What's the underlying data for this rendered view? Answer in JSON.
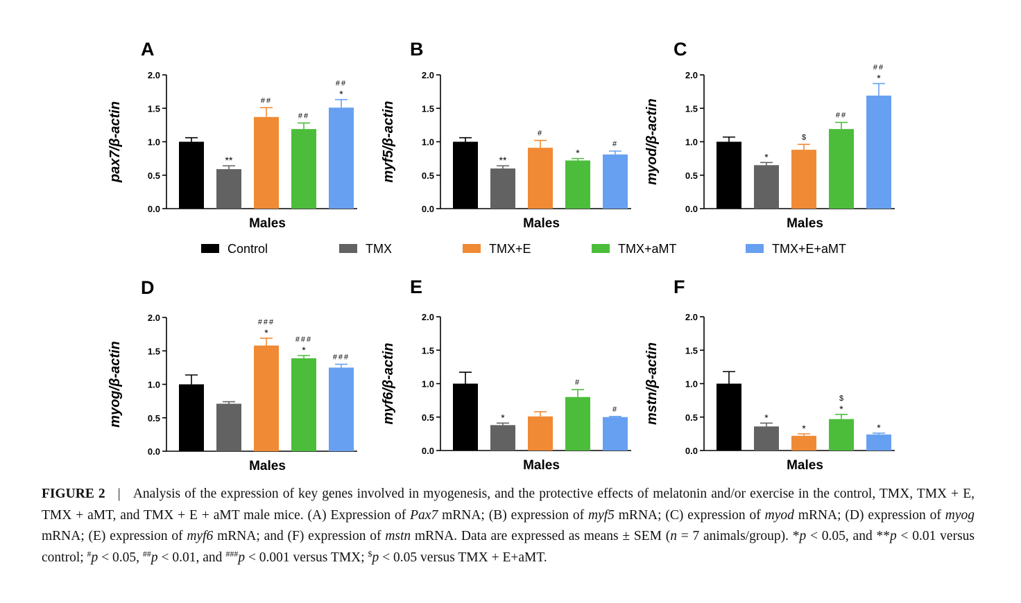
{
  "chart_data": [
    {
      "panel": "A",
      "type": "bar",
      "ylabel": "pax7/β-actin",
      "ylabel_gene": "pax7",
      "ylabel_ref": "β-actin",
      "xlabel": "Males",
      "ylim": [
        0,
        2
      ],
      "yticks": [
        "0.0",
        "0.5",
        "1.0",
        "1.5",
        "2.0"
      ],
      "categories": [
        "Control",
        "TMX",
        "TMX+E",
        "TMX+aMT",
        "TMX+E+aMT"
      ],
      "values": [
        1.0,
        0.59,
        1.37,
        1.19,
        1.51
      ],
      "errors": [
        0.06,
        0.05,
        0.14,
        0.09,
        0.12
      ],
      "annotations": [
        [],
        [
          "**"
        ],
        [
          "##"
        ],
        [
          "##"
        ],
        [
          "##",
          "*"
        ]
      ]
    },
    {
      "panel": "B",
      "type": "bar",
      "ylabel": "myf5/β-actin",
      "ylabel_gene": "myf5",
      "ylabel_ref": "β-actin",
      "xlabel": "Males",
      "ylim": [
        0,
        2
      ],
      "yticks": [
        "0.0",
        "0.5",
        "1.0",
        "1.5",
        "2.0"
      ],
      "categories": [
        "Control",
        "TMX",
        "TMX+E",
        "TMX+aMT",
        "TMX+E+aMT"
      ],
      "values": [
        1.0,
        0.6,
        0.91,
        0.72,
        0.81
      ],
      "errors": [
        0.06,
        0.04,
        0.11,
        0.03,
        0.05
      ],
      "annotations": [
        [],
        [
          "**"
        ],
        [
          "#"
        ],
        [
          "*"
        ],
        [
          "#"
        ]
      ]
    },
    {
      "panel": "C",
      "type": "bar",
      "ylabel": "myod/β-actin",
      "ylabel_gene": "myod",
      "ylabel_ref": "β-actin",
      "xlabel": "Males",
      "ylim": [
        0,
        2
      ],
      "yticks": [
        "0.0",
        "0.5",
        "1.0",
        "1.5",
        "2.0"
      ],
      "categories": [
        "Control",
        "TMX",
        "TMX+E",
        "TMX+aMT",
        "TMX+E+aMT"
      ],
      "values": [
        1.0,
        0.65,
        0.88,
        1.19,
        1.69
      ],
      "errors": [
        0.07,
        0.04,
        0.08,
        0.1,
        0.18
      ],
      "annotations": [
        [],
        [
          "*"
        ],
        [
          "$"
        ],
        [
          "##"
        ],
        [
          "##",
          "*"
        ]
      ]
    },
    {
      "panel": "D",
      "type": "bar",
      "ylabel": "myog/β-actin",
      "ylabel_gene": "myog",
      "ylabel_ref": "β-actin",
      "xlabel": "Males",
      "ylim": [
        0,
        2
      ],
      "yticks": [
        "0.0",
        "0.5",
        "1.0",
        "1.5",
        "2.0"
      ],
      "categories": [
        "Control",
        "TMX",
        "TMX+E",
        "TMX+aMT",
        "TMX+E+aMT"
      ],
      "values": [
        1.0,
        0.71,
        1.58,
        1.39,
        1.25
      ],
      "errors": [
        0.14,
        0.03,
        0.11,
        0.04,
        0.05
      ],
      "annotations": [
        [],
        [],
        [
          "###",
          "*"
        ],
        [
          "###",
          "*"
        ],
        [
          "###"
        ]
      ]
    },
    {
      "panel": "E",
      "type": "bar",
      "ylabel": "myf6/β-actin",
      "ylabel_gene": "myf6",
      "ylabel_ref": "β-actin",
      "xlabel": "Males",
      "ylim": [
        0,
        2
      ],
      "yticks": [
        "0.0",
        "0.5",
        "1.0",
        "1.5",
        "2.0"
      ],
      "categories": [
        "Control",
        "TMX",
        "TMX+E",
        "TMX+aMT",
        "TMX+E+aMT"
      ],
      "values": [
        1.0,
        0.38,
        0.51,
        0.8,
        0.5
      ],
      "errors": [
        0.17,
        0.03,
        0.07,
        0.11,
        0.01
      ],
      "annotations": [
        [],
        [
          "*"
        ],
        [],
        [
          "#"
        ],
        [
          "#"
        ]
      ]
    },
    {
      "panel": "F",
      "type": "bar",
      "ylabel": "mstn/β-actin",
      "ylabel_gene": "mstn",
      "ylabel_ref": "β-actin",
      "xlabel": "Males",
      "ylim": [
        0,
        2
      ],
      "yticks": [
        "0.0",
        "0.5",
        "1.0",
        "1.5",
        "2.0"
      ],
      "categories": [
        "Control",
        "TMX",
        "TMX+E",
        "TMX+aMT",
        "TMX+E+aMT"
      ],
      "values": [
        1.0,
        0.36,
        0.22,
        0.47,
        0.24
      ],
      "errors": [
        0.18,
        0.05,
        0.03,
        0.07,
        0.02
      ],
      "annotations": [
        [],
        [
          "*"
        ],
        [
          "*"
        ],
        [
          "$",
          "*"
        ],
        [
          "*"
        ]
      ]
    }
  ],
  "colors": {
    "Control": "#000000",
    "TMX": "#626262",
    "TMX+E": "#f08a34",
    "TMX+aMT": "#4cbd3b",
    "TMX+E+aMT": "#67a0f0"
  },
  "legend": [
    {
      "label": "Control",
      "color": "#000000"
    },
    {
      "label": "TMX",
      "color": "#626262"
    },
    {
      "label": "TMX+E",
      "color": "#f08a34"
    },
    {
      "label": "TMX+aMT",
      "color": "#4cbd3b"
    },
    {
      "label": "TMX+E+aMT",
      "color": "#67a0f0"
    }
  ],
  "caption": {
    "label": "FIGURE 2",
    "separator": "|",
    "text": "Analysis of the expression of key genes involved in myogenesis, and the protective effects of melatonin and/or exercise in the control, TMX, TMX + E, TMX + aMT, and TMX + E + aMT male mice. (A) Expression of Pax7 mRNA; (B) expression of myf5 mRNA; (C) expression of myod mRNA; (D) expression of myog mRNA; (E) expression of myf6 mRNA; and (F) expression of mstn mRNA. Data are expressed as means ± SEM (n = 7 animals/group). *p < 0.05, and **p < 0.01 versus control; #p < 0.05, ##p < 0.01, and ###p < 0.001 versus TMX; $p < 0.05 versus TMX + E+aMT."
  }
}
